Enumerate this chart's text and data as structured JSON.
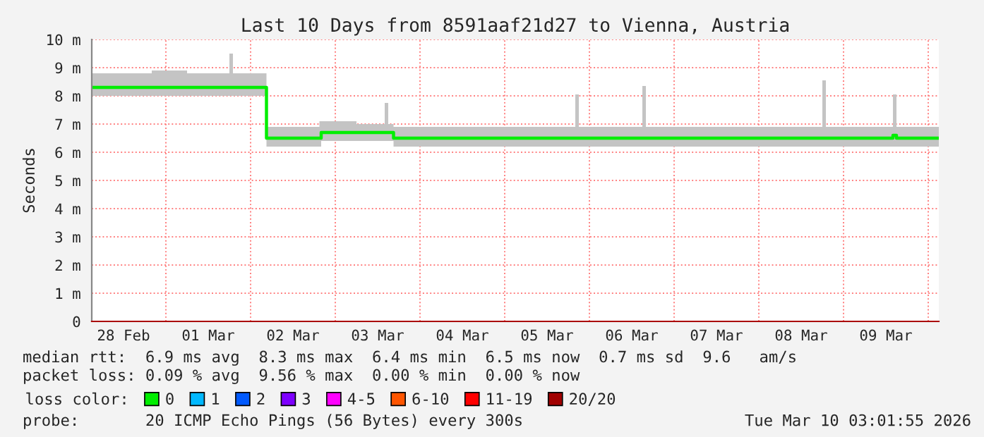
{
  "chart_data": {
    "type": "line",
    "title": "Last 10 Days from 8591aaf21d27 to Vienna, Austria",
    "ylabel": "Seconds",
    "x": [
      "2026-02-28T03:00",
      "2026-02-28T12:00",
      "2026-02-28T20:00",
      "2026-03-01T06:00",
      "2026-03-01T17:00",
      "2026-03-01T18:00",
      "2026-03-01T19:00",
      "2026-03-02T04:00",
      "2026-03-02T04:30",
      "2026-03-02T12:00",
      "2026-03-02T19:30",
      "2026-03-02T20:00",
      "2026-03-03T06:00",
      "2026-03-03T13:00",
      "2026-03-03T14:00",
      "2026-03-03T15:00",
      "2026-03-03T16:00",
      "2026-03-03T16:30",
      "2026-03-04T06:00",
      "2026-03-05T06:00",
      "2026-03-05T19:00",
      "2026-03-05T20:00",
      "2026-03-05T21:00",
      "2026-03-06T14:00",
      "2026-03-06T15:00",
      "2026-03-06T16:00",
      "2026-03-07T12:00",
      "2026-03-08T17:00",
      "2026-03-08T18:00",
      "2026-03-08T19:00",
      "2026-03-09T13:00",
      "2026-03-09T14:00",
      "2026-03-09T15:00",
      "2026-03-10T03:00"
    ],
    "series": [
      {
        "name": "0",
        "color": "#00ee00",
        "values": [
          8.3,
          8.3,
          8.3,
          8.3,
          8.3,
          8.3,
          8.3,
          8.3,
          6.5,
          6.5,
          6.5,
          6.7,
          6.7,
          6.7,
          6.7,
          6.7,
          6.7,
          6.5,
          6.5,
          6.5,
          6.5,
          6.5,
          6.5,
          6.5,
          6.5,
          6.5,
          6.5,
          6.5,
          6.5,
          6.5,
          6.5,
          6.6,
          6.5,
          6.5
        ],
        "lower": [
          8.0,
          8.0,
          8.0,
          8.0,
          8.0,
          8.0,
          8.0,
          8.0,
          6.2,
          6.2,
          6.2,
          6.4,
          6.4,
          6.4,
          6.4,
          6.4,
          6.4,
          6.2,
          6.2,
          6.2,
          6.2,
          6.2,
          6.2,
          6.2,
          6.2,
          6.2,
          6.2,
          6.2,
          6.2,
          6.2,
          6.2,
          6.2,
          6.2,
          6.2
        ],
        "upper": [
          8.8,
          8.8,
          8.9,
          8.8,
          8.8,
          9.5,
          8.8,
          8.8,
          6.9,
          6.9,
          7.1,
          7.1,
          7.0,
          7.0,
          7.75,
          7.0,
          7.0,
          6.9,
          6.9,
          6.9,
          6.9,
          8.05,
          6.9,
          6.9,
          8.35,
          6.9,
          6.9,
          6.9,
          8.55,
          6.9,
          6.9,
          8.05,
          6.9,
          6.9
        ]
      },
      {
        "name": "1",
        "color": "#00b8ff",
        "values": [
          null,
          null,
          null,
          null,
          null,
          null,
          null,
          null,
          null,
          null,
          null,
          null,
          null,
          null,
          null,
          null,
          null,
          null,
          null,
          null,
          null,
          null,
          null,
          null,
          null,
          null,
          null,
          null,
          null,
          null,
          null,
          null,
          null,
          null
        ]
      },
      {
        "name": "2",
        "color": "#0059ff",
        "values": [
          null,
          null,
          null,
          null,
          null,
          null,
          null,
          null,
          null,
          null,
          null,
          null,
          null,
          null,
          null,
          null,
          null,
          null,
          null,
          null,
          null,
          null,
          null,
          null,
          null,
          null,
          null,
          null,
          null,
          null,
          null,
          null,
          null,
          null
        ]
      },
      {
        "name": "3",
        "color": "#7e00ff",
        "values": [
          null,
          null,
          null,
          null,
          null,
          null,
          null,
          null,
          null,
          null,
          null,
          null,
          null,
          null,
          null,
          null,
          null,
          null,
          null,
          null,
          null,
          null,
          null,
          null,
          null,
          null,
          null,
          null,
          null,
          null,
          null,
          null,
          null,
          null
        ]
      },
      {
        "name": "4-5",
        "color": "#ff00ff",
        "values": [
          null,
          null,
          null,
          null,
          null,
          null,
          null,
          null,
          null,
          null,
          null,
          null,
          null,
          null,
          null,
          null,
          null,
          null,
          null,
          null,
          null,
          null,
          null,
          null,
          null,
          null,
          null,
          null,
          null,
          null,
          null,
          null,
          null,
          null
        ]
      },
      {
        "name": "6-10",
        "color": "#ff5500",
        "values": [
          null,
          null,
          null,
          null,
          null,
          null,
          null,
          null,
          null,
          null,
          null,
          null,
          null,
          null,
          null,
          null,
          null,
          null,
          null,
          null,
          null,
          null,
          null,
          null,
          null,
          null,
          null,
          null,
          null,
          null,
          null,
          null,
          null,
          null
        ]
      },
      {
        "name": "11-19",
        "color": "#ff0000",
        "values": [
          null,
          null,
          null,
          null,
          null,
          null,
          null,
          null,
          null,
          null,
          null,
          null,
          null,
          null,
          null,
          null,
          null,
          null,
          null,
          null,
          null,
          null,
          null,
          null,
          null,
          null,
          null,
          null,
          null,
          null,
          null,
          null,
          null,
          null
        ]
      },
      {
        "name": "20/20",
        "color": "#a10000",
        "values": [
          null,
          null,
          null,
          null,
          null,
          null,
          null,
          null,
          null,
          null,
          null,
          null,
          null,
          null,
          null,
          null,
          null,
          null,
          null,
          null,
          null,
          null,
          null,
          null,
          null,
          null,
          null,
          null,
          null,
          null,
          null,
          null,
          null,
          null
        ]
      }
    ],
    "legend": "bottom",
    "legend_title": "loss color:",
    "xlim": [
      "2026-02-28T03:00",
      "2026-03-10T03:00"
    ],
    "xticks": [
      {
        "value": "2026-02-28T12:00",
        "label": "28 Feb"
      },
      {
        "value": "2026-03-01T00:00",
        "label": null
      },
      {
        "value": "2026-03-01T12:00",
        "label": "01 Mar"
      },
      {
        "value": "2026-03-02T00:00",
        "label": null
      },
      {
        "value": "2026-03-02T12:00",
        "label": "02 Mar"
      },
      {
        "value": "2026-03-03T00:00",
        "label": null
      },
      {
        "value": "2026-03-03T12:00",
        "label": "03 Mar"
      },
      {
        "value": "2026-03-04T00:00",
        "label": null
      },
      {
        "value": "2026-03-04T12:00",
        "label": "04 Mar"
      },
      {
        "value": "2026-03-05T00:00",
        "label": null
      },
      {
        "value": "2026-03-05T12:00",
        "label": "05 Mar"
      },
      {
        "value": "2026-03-06T00:00",
        "label": null
      },
      {
        "value": "2026-03-06T12:00",
        "label": "06 Mar"
      },
      {
        "value": "2026-03-07T00:00",
        "label": null
      },
      {
        "value": "2026-03-07T12:00",
        "label": "07 Mar"
      },
      {
        "value": "2026-03-08T00:00",
        "label": null
      },
      {
        "value": "2026-03-08T12:00",
        "label": "08 Mar"
      },
      {
        "value": "2026-03-09T00:00",
        "label": null
      },
      {
        "value": "2026-03-09T12:00",
        "label": "09 Mar"
      },
      {
        "value": "2026-03-10T00:00",
        "label": null
      }
    ],
    "ylim": [
      0,
      10
    ],
    "yticks": [
      0,
      {
        "value": 1,
        "label": "1 m"
      },
      {
        "value": 2,
        "label": "2 m"
      },
      {
        "value": 3,
        "label": "3 m"
      },
      {
        "value": 4,
        "label": "4 m"
      },
      {
        "value": 5,
        "label": "5 m"
      },
      {
        "value": 6,
        "label": "6 m"
      },
      {
        "value": 7,
        "label": "7 m"
      },
      {
        "value": 8,
        "label": "8 m"
      },
      {
        "value": 9,
        "label": "9 m"
      },
      {
        "value": 10,
        "label": "10 m"
      }
    ],
    "grid": true,
    "annotations": [
      "median rtt:  6.9 ms avg  8.3 ms max  6.4 ms min  6.5 ms now  0.7 ms sd  9.6   am/s",
      "packet loss: 0.09 % avg  9.56 % max  0.00 % min  0.00 % now",
      "probe:       20 ICMP Echo Pings (56 Bytes) every 300s",
      "Tue Mar 10 03:01:55 2026"
    ]
  }
}
